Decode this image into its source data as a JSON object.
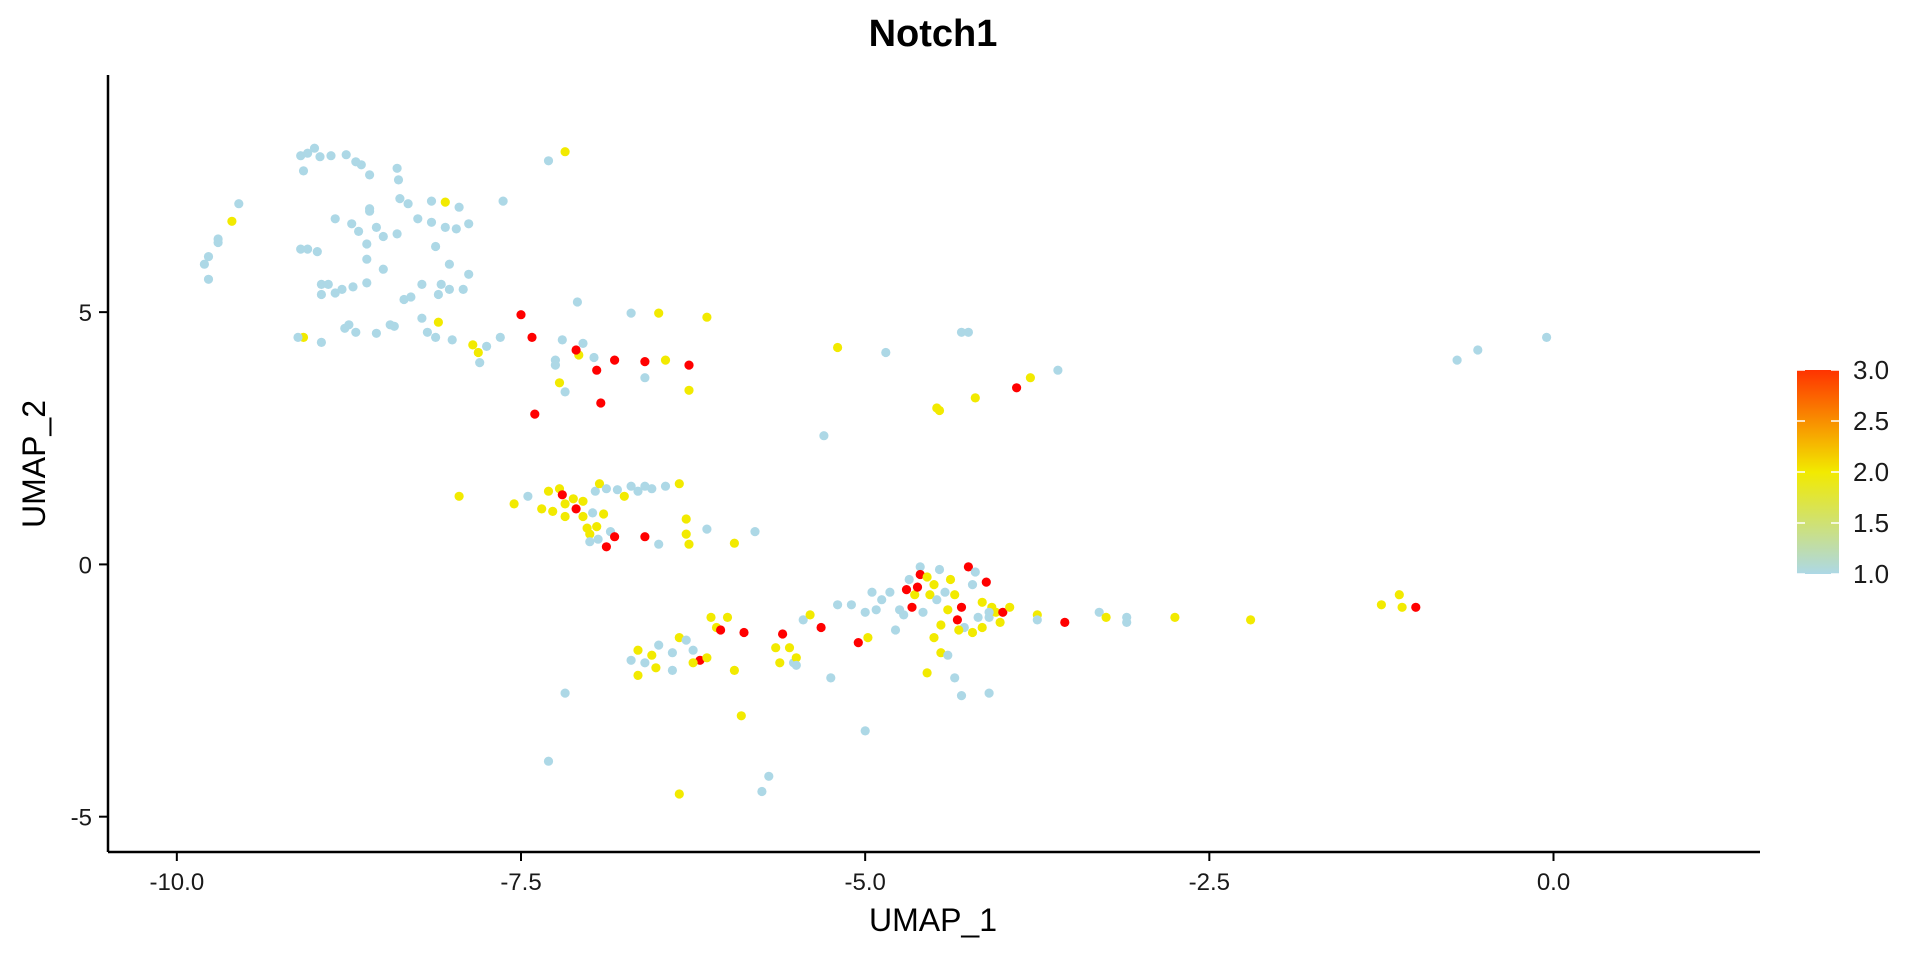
{
  "chart_data": {
    "type": "scatter",
    "title": "Notch1",
    "xlabel": "UMAP_1",
    "ylabel": "UMAP_2",
    "xlim": [
      -10.5,
      1.5
    ],
    "ylim": [
      -5.7,
      9.7
    ],
    "xticks": [
      -10.0,
      -7.5,
      -5.0,
      -2.5,
      0.0
    ],
    "xtick_labels": [
      "-10.0",
      "-7.5",
      "-5.0",
      "-2.5",
      "0.0"
    ],
    "yticks": [
      -5,
      0,
      5
    ],
    "ytick_labels": [
      "-5",
      "0",
      "5"
    ],
    "grid": false,
    "legend": {
      "placement": "right",
      "type": "colorbar",
      "min": 1.0,
      "max": 3.0,
      "ticks": [
        1.0,
        1.5,
        2.0,
        2.5,
        3.0
      ],
      "tick_labels": [
        "1.0",
        "1.5",
        "2.0",
        "2.5",
        "3.0"
      ]
    },
    "color_scale": [
      {
        "value": 1.0,
        "color": "#add8e6"
      },
      {
        "value": 2.0,
        "color": "#f2ea00"
      },
      {
        "value": 3.0,
        "color": "#ff3300"
      }
    ],
    "points": [
      [
        -9.8,
        5.95,
        1
      ],
      [
        -9.77,
        6.1,
        1
      ],
      [
        -9.77,
        5.65,
        1
      ],
      [
        -9.7,
        6.45,
        1
      ],
      [
        -9.7,
        6.38,
        1
      ],
      [
        -9.6,
        6.8,
        2
      ],
      [
        -9.55,
        7.15,
        1
      ],
      [
        -9.08,
        4.5,
        2
      ],
      [
        -9.12,
        4.5,
        1
      ],
      [
        -9.1,
        8.1,
        1
      ],
      [
        -9.05,
        8.15,
        1
      ],
      [
        -9.08,
        7.8,
        1
      ],
      [
        -9.0,
        8.25,
        1
      ],
      [
        -8.96,
        8.08,
        1
      ],
      [
        -8.88,
        8.1,
        1
      ],
      [
        -8.77,
        8.12,
        1
      ],
      [
        -8.7,
        7.98,
        1
      ],
      [
        -8.66,
        7.92,
        1
      ],
      [
        -8.6,
        7.72,
        1
      ],
      [
        -8.4,
        7.85,
        1
      ],
      [
        -8.39,
        7.62,
        1
      ],
      [
        -8.6,
        7.05,
        1
      ],
      [
        -8.38,
        7.25,
        1
      ],
      [
        -8.32,
        7.15,
        1
      ],
      [
        -8.15,
        7.2,
        1
      ],
      [
        -8.05,
        7.18,
        2
      ],
      [
        -7.95,
        7.08,
        1
      ],
      [
        -8.85,
        6.85,
        1
      ],
      [
        -8.73,
        6.75,
        1
      ],
      [
        -8.68,
        6.6,
        1
      ],
      [
        -8.55,
        6.68,
        1
      ],
      [
        -8.5,
        6.5,
        1
      ],
      [
        -8.25,
        6.85,
        1
      ],
      [
        -8.15,
        6.78,
        1
      ],
      [
        -8.05,
        6.68,
        1
      ],
      [
        -7.97,
        6.65,
        1
      ],
      [
        -7.88,
        6.75,
        1
      ],
      [
        -7.63,
        7.2,
        1
      ],
      [
        -8.62,
        6.35,
        1
      ],
      [
        -8.6,
        7.0,
        1
      ],
      [
        -8.4,
        6.55,
        1
      ],
      [
        -9.1,
        6.25,
        1
      ],
      [
        -9.05,
        6.25,
        1
      ],
      [
        -8.98,
        6.2,
        1
      ],
      [
        -8.62,
        6.05,
        1
      ],
      [
        -8.5,
        5.85,
        1
      ],
      [
        -8.12,
        6.3,
        1
      ],
      [
        -8.02,
        5.95,
        1
      ],
      [
        -7.88,
        5.75,
        1
      ],
      [
        -8.95,
        5.55,
        1
      ],
      [
        -8.9,
        5.55,
        1
      ],
      [
        -8.85,
        5.38,
        1
      ],
      [
        -8.8,
        5.45,
        1
      ],
      [
        -8.95,
        5.35,
        1
      ],
      [
        -8.72,
        5.5,
        1
      ],
      [
        -8.62,
        5.58,
        1
      ],
      [
        -8.35,
        5.25,
        1
      ],
      [
        -8.3,
        5.3,
        1
      ],
      [
        -8.22,
        5.55,
        1
      ],
      [
        -8.1,
        5.35,
        1
      ],
      [
        -8.02,
        5.45,
        1
      ],
      [
        -7.92,
        5.45,
        1
      ],
      [
        -8.08,
        5.55,
        1
      ],
      [
        -8.95,
        4.4,
        1
      ],
      [
        -8.78,
        4.68,
        1
      ],
      [
        -8.75,
        4.75,
        1
      ],
      [
        -8.7,
        4.6,
        1
      ],
      [
        -8.55,
        4.58,
        1
      ],
      [
        -8.45,
        4.75,
        1
      ],
      [
        -8.42,
        4.72,
        1
      ],
      [
        -8.22,
        4.88,
        1
      ],
      [
        -8.18,
        4.6,
        1
      ],
      [
        -8.12,
        4.5,
        1
      ],
      [
        -8.0,
        4.45,
        1
      ],
      [
        -7.85,
        4.35,
        2
      ],
      [
        -7.81,
        4.2,
        2
      ],
      [
        -7.8,
        4.0,
        1
      ],
      [
        -7.75,
        4.32,
        1
      ],
      [
        -7.65,
        4.5,
        1
      ],
      [
        -8.1,
        4.8,
        2
      ],
      [
        -7.5,
        4.95,
        3
      ],
      [
        -7.42,
        4.5,
        3
      ],
      [
        -7.25,
        4.05,
        1
      ],
      [
        -7.25,
        3.95,
        1
      ],
      [
        -7.22,
        3.6,
        2
      ],
      [
        -7.2,
        4.45,
        1
      ],
      [
        -7.08,
        4.15,
        2
      ],
      [
        -7.1,
        4.25,
        3
      ],
      [
        -6.97,
        4.1,
        1
      ],
      [
        -6.95,
        3.85,
        3
      ],
      [
        -6.92,
        3.2,
        3
      ],
      [
        -6.82,
        4.05,
        3
      ],
      [
        -6.7,
        4.98,
        1
      ],
      [
        -6.6,
        4.02,
        3
      ],
      [
        -6.6,
        3.7,
        1
      ],
      [
        -6.5,
        4.98,
        2
      ],
      [
        -6.45,
        4.05,
        2
      ],
      [
        -6.28,
        3.95,
        3
      ],
      [
        -6.28,
        3.45,
        2
      ],
      [
        -6.15,
        4.9,
        2
      ],
      [
        -7.09,
        5.2,
        1
      ],
      [
        -7.05,
        4.38,
        1
      ],
      [
        -7.4,
        2.98,
        3
      ],
      [
        -7.18,
        3.42,
        1
      ],
      [
        -7.3,
        8.0,
        1
      ],
      [
        -7.18,
        8.18,
        2
      ],
      [
        -7.95,
        1.35,
        2
      ],
      [
        -7.55,
        1.2,
        2
      ],
      [
        -7.45,
        1.35,
        1
      ],
      [
        -7.35,
        1.1,
        2
      ],
      [
        -7.3,
        1.45,
        2
      ],
      [
        -7.27,
        1.05,
        2
      ],
      [
        -7.22,
        1.5,
        2
      ],
      [
        -7.2,
        1.38,
        3
      ],
      [
        -7.18,
        1.2,
        2
      ],
      [
        -7.18,
        0.95,
        2
      ],
      [
        -7.12,
        1.3,
        2
      ],
      [
        -7.1,
        1.1,
        3
      ],
      [
        -7.05,
        1.25,
        2
      ],
      [
        -7.05,
        0.95,
        2
      ],
      [
        -7.02,
        0.72,
        2
      ],
      [
        -7.0,
        0.6,
        2
      ],
      [
        -7.0,
        0.45,
        1
      ],
      [
        -6.98,
        1.02,
        1
      ],
      [
        -6.96,
        1.45,
        1
      ],
      [
        -6.95,
        0.75,
        2
      ],
      [
        -6.94,
        0.5,
        1
      ],
      [
        -6.93,
        1.6,
        2
      ],
      [
        -6.9,
        1.0,
        2
      ],
      [
        -6.88,
        1.5,
        1
      ],
      [
        -6.88,
        0.35,
        3
      ],
      [
        -6.85,
        0.65,
        1
      ],
      [
        -6.82,
        0.55,
        3
      ],
      [
        -6.8,
        1.48,
        1
      ],
      [
        -6.75,
        1.35,
        2
      ],
      [
        -6.7,
        1.55,
        1
      ],
      [
        -6.65,
        1.45,
        1
      ],
      [
        -6.6,
        1.55,
        1
      ],
      [
        -6.55,
        1.5,
        1
      ],
      [
        -6.45,
        1.55,
        1
      ],
      [
        -6.35,
        1.6,
        2
      ],
      [
        -6.3,
        0.9,
        2
      ],
      [
        -6.3,
        0.6,
        2
      ],
      [
        -6.28,
        0.4,
        2
      ],
      [
        -6.6,
        0.55,
        3
      ],
      [
        -6.5,
        0.4,
        1
      ],
      [
        -6.15,
        0.7,
        1
      ],
      [
        -5.95,
        0.42,
        2
      ],
      [
        -5.8,
        0.65,
        1
      ],
      [
        -6.35,
        -1.45,
        2
      ],
      [
        -6.25,
        -1.7,
        1
      ],
      [
        -6.2,
        -1.9,
        3
      ],
      [
        -6.15,
        -1.85,
        2
      ],
      [
        -6.12,
        -1.05,
        2
      ],
      [
        -6.08,
        -1.25,
        2
      ],
      [
        -6.05,
        -1.3,
        3
      ],
      [
        -6.0,
        -1.05,
        2
      ],
      [
        -6.55,
        -1.8,
        2
      ],
      [
        -6.52,
        -2.05,
        2
      ],
      [
        -6.65,
        -1.7,
        2
      ],
      [
        -6.6,
        -1.95,
        1
      ],
      [
        -6.5,
        -1.6,
        1
      ],
      [
        -6.4,
        -1.75,
        1
      ],
      [
        -6.3,
        -1.5,
        1
      ],
      [
        -6.25,
        -1.95,
        2
      ],
      [
        -6.7,
        -1.9,
        1
      ],
      [
        -6.65,
        -2.2,
        2
      ],
      [
        -6.4,
        -2.1,
        1
      ],
      [
        -5.88,
        -1.35,
        3
      ],
      [
        -5.6,
        -1.38,
        3
      ],
      [
        -5.65,
        -1.65,
        2
      ],
      [
        -5.62,
        -1.95,
        2
      ],
      [
        -5.55,
        -1.65,
        2
      ],
      [
        -5.52,
        -1.95,
        1
      ],
      [
        -5.5,
        -1.85,
        2
      ],
      [
        -5.45,
        -1.1,
        1
      ],
      [
        -5.4,
        -1.0,
        2
      ],
      [
        -5.32,
        -1.25,
        3
      ],
      [
        -5.2,
        -0.8,
        1
      ],
      [
        -5.1,
        -0.8,
        1
      ],
      [
        -5.05,
        -1.55,
        3
      ],
      [
        -5.0,
        -0.95,
        1
      ],
      [
        -4.98,
        -1.45,
        2
      ],
      [
        -4.92,
        -0.9,
        1
      ],
      [
        -4.88,
        -0.7,
        1
      ],
      [
        -4.82,
        -0.55,
        1
      ],
      [
        -4.78,
        -1.3,
        1
      ],
      [
        -4.75,
        -0.9,
        1
      ],
      [
        -4.72,
        -1.0,
        1
      ],
      [
        -4.7,
        -0.5,
        3
      ],
      [
        -4.68,
        -0.3,
        1
      ],
      [
        -4.66,
        -0.85,
        3
      ],
      [
        -4.64,
        -0.6,
        2
      ],
      [
        -4.62,
        -0.45,
        3
      ],
      [
        -4.6,
        -0.05,
        1
      ],
      [
        -4.6,
        -0.2,
        3
      ],
      [
        -4.58,
        -0.95,
        1
      ],
      [
        -4.55,
        -0.25,
        2
      ],
      [
        -4.53,
        -0.6,
        2
      ],
      [
        -4.5,
        -0.4,
        2
      ],
      [
        -4.48,
        -0.7,
        1
      ],
      [
        -4.46,
        -0.1,
        1
      ],
      [
        -4.45,
        -1.2,
        2
      ],
      [
        -4.42,
        -0.55,
        1
      ],
      [
        -4.4,
        -0.9,
        2
      ],
      [
        -4.38,
        -0.3,
        2
      ],
      [
        -4.35,
        -0.6,
        2
      ],
      [
        -4.33,
        -1.1,
        3
      ],
      [
        -4.3,
        -0.85,
        3
      ],
      [
        -4.28,
        -1.25,
        1
      ],
      [
        -4.25,
        -0.05,
        3
      ],
      [
        -4.22,
        -0.4,
        1
      ],
      [
        -4.2,
        -0.15,
        1
      ],
      [
        -4.18,
        -1.05,
        1
      ],
      [
        -4.15,
        -0.75,
        2
      ],
      [
        -4.12,
        -0.35,
        3
      ],
      [
        -4.1,
        -1.05,
        1
      ],
      [
        -4.08,
        -0.85,
        2
      ],
      [
        -4.05,
        -0.95,
        2
      ],
      [
        -4.02,
        -1.15,
        2
      ],
      [
        -4.0,
        -0.95,
        3
      ],
      [
        -3.95,
        -0.85,
        2
      ],
      [
        -4.5,
        -1.45,
        2
      ],
      [
        -4.45,
        -1.75,
        2
      ],
      [
        -4.4,
        -1.8,
        1
      ],
      [
        -4.32,
        -1.3,
        2
      ],
      [
        -4.22,
        -1.35,
        2
      ],
      [
        -4.15,
        -1.25,
        2
      ],
      [
        -4.55,
        -2.15,
        2
      ],
      [
        -4.35,
        -2.25,
        1
      ],
      [
        -4.3,
        -2.6,
        1
      ],
      [
        -3.75,
        -1.0,
        2
      ],
      [
        -3.75,
        -1.1,
        1
      ],
      [
        -3.55,
        -1.15,
        3
      ],
      [
        -3.3,
        -0.95,
        1
      ],
      [
        -3.25,
        -1.05,
        2
      ],
      [
        -3.1,
        -1.05,
        1
      ],
      [
        -3.1,
        -1.15,
        1
      ],
      [
        -2.75,
        -1.05,
        2
      ],
      [
        -2.2,
        -1.1,
        2
      ],
      [
        -4.1,
        -2.55,
        1
      ],
      [
        -5.5,
        -2.0,
        1
      ],
      [
        -5.25,
        -2.25,
        1
      ],
      [
        -5.0,
        -3.3,
        1
      ],
      [
        -5.7,
        -4.2,
        1
      ],
      [
        -5.75,
        -4.5,
        1
      ],
      [
        -5.9,
        -3.0,
        2
      ],
      [
        -6.35,
        -4.55,
        2
      ],
      [
        -7.3,
        -3.9,
        1
      ],
      [
        -7.18,
        -2.55,
        1
      ],
      [
        -5.95,
        -2.1,
        2
      ],
      [
        -4.95,
        -0.55,
        1
      ],
      [
        -4.1,
        -0.95,
        1
      ],
      [
        -5.3,
        2.55,
        1
      ],
      [
        -5.2,
        4.3,
        2
      ],
      [
        -4.85,
        4.2,
        1
      ],
      [
        -4.3,
        4.6,
        1
      ],
      [
        -4.25,
        4.6,
        1
      ],
      [
        -4.48,
        3.1,
        2
      ],
      [
        -4.46,
        3.05,
        2
      ],
      [
        -4.2,
        3.3,
        2
      ],
      [
        -3.9,
        3.5,
        3
      ],
      [
        -3.8,
        3.7,
        2
      ],
      [
        -3.6,
        3.85,
        1
      ],
      [
        -0.7,
        4.05,
        1
      ],
      [
        -0.55,
        4.25,
        1
      ],
      [
        -0.05,
        4.5,
        1
      ],
      [
        -1.25,
        -0.8,
        2
      ],
      [
        -1.12,
        -0.6,
        2
      ],
      [
        -1.1,
        -0.85,
        2
      ],
      [
        -1.0,
        -0.85,
        3
      ]
    ]
  }
}
